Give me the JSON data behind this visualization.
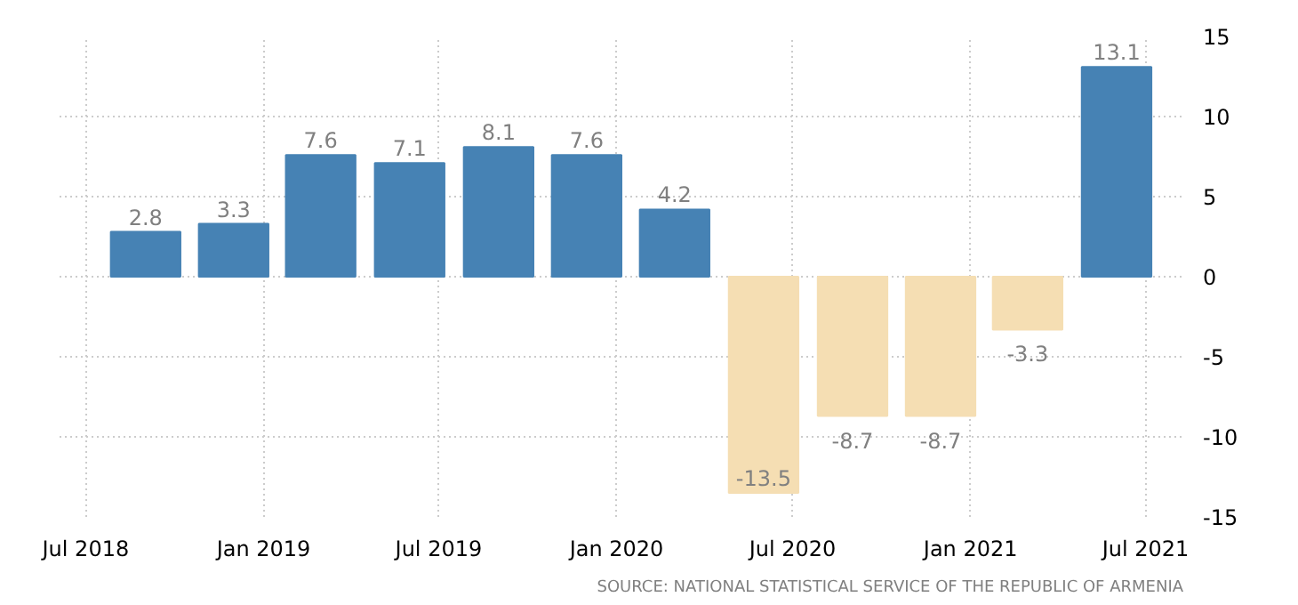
{
  "chart_data": {
    "type": "bar",
    "x": [
      "2018-09-01",
      "2018-12-01",
      "2019-03-01",
      "2019-06-01",
      "2019-09-01",
      "2019-12-01",
      "2020-03-01",
      "2020-06-01",
      "2020-09-01",
      "2020-12-01",
      "2021-03-01",
      "2021-06-01"
    ],
    "values": [
      2.8,
      3.3,
      7.6,
      7.1,
      8.1,
      7.6,
      4.2,
      -13.5,
      -8.7,
      -8.7,
      -3.3,
      13.1
    ],
    "colors": [
      "#4682b4",
      "#4682b4",
      "#4682b4",
      "#4682b4",
      "#4682b4",
      "#4682b4",
      "#4682b4",
      "#f5deb3",
      "#f5deb3",
      "#f5deb3",
      "#f5deb3",
      "#4682b4"
    ],
    "data_labels": true,
    "xlim": [
      "2018-06-04",
      "2021-08-09"
    ],
    "xticks": [
      {
        "value": "2018-07-01",
        "label": "Jul 2018"
      },
      {
        "value": "2019-01-01",
        "label": "Jan 2019"
      },
      {
        "value": "2019-07-01",
        "label": "Jul 2019"
      },
      {
        "value": "2020-01-01",
        "label": "Jan 2020"
      },
      {
        "value": "2020-07-01",
        "label": "Jul 2020"
      },
      {
        "value": "2021-01-01",
        "label": "Jan 2021"
      },
      {
        "value": "2021-07-01",
        "label": "Jul 2021"
      }
    ],
    "ylim": [
      -15,
      15
    ],
    "yticks": [
      -15,
      -10,
      -5,
      0,
      5,
      10,
      15
    ],
    "grid": true,
    "annotations": [
      "SOURCE: NATIONAL STATISTICAL SERVICE OF THE REPUBLIC OF ARMENIA"
    ]
  }
}
